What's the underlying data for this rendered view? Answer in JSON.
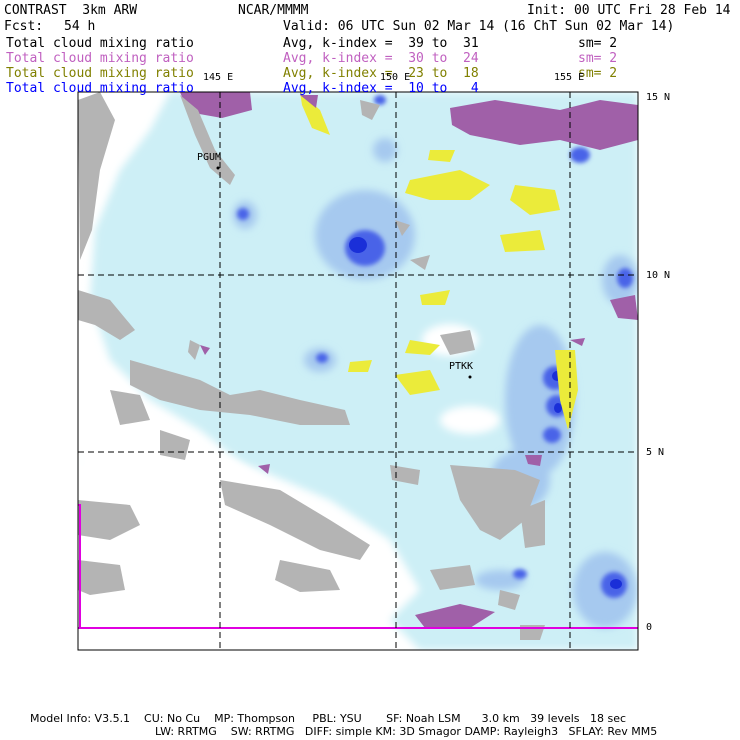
{
  "header": {
    "model": "CONTRAST  3km ARW",
    "org": "NCAR/MMMM",
    "init": "Init: 00 UTC Fri 28 Feb 14",
    "fcst_label": "Fcst:",
    "fcst_value": "54 h",
    "valid": "Valid: 06 UTC Sun 02 Mar 14 (16 ChT Sun 02 Mar 14)"
  },
  "fields": [
    {
      "name": "Total cloud mixing ratio",
      "stats": "Avg, k-index =  39 to  31",
      "sm": "sm= 2",
      "color": "#000000"
    },
    {
      "name": "Total cloud mixing ratio",
      "stats": "Avg, k-index =  30 to  24",
      "sm": "sm= 2",
      "color": "#c060c0"
    },
    {
      "name": "Total cloud mixing ratio",
      "stats": "Avg, k-index =  23 to  18",
      "sm": "sm= 2",
      "color": "#808000"
    },
    {
      "name": "Total cloud mixing ratio",
      "stats": "Avg, k-index =  10 to   4",
      "sm": "",
      "color": "#0000ff"
    }
  ],
  "map": {
    "lon_labels": [
      "145 E",
      "150 E",
      "155 E"
    ],
    "lat_labels": [
      "15 N",
      "10 N",
      "5 N",
      "0"
    ],
    "stations": [
      "PGUM",
      "PTKK"
    ],
    "colors": {
      "land": "#b4b4b4",
      "ocean": "#ffffff",
      "cloud_light": "#cdeff6",
      "cloud_mid": "#a6c9ef",
      "cloud_heavy": "#4a63e8",
      "cloud_core": "#1a2fd8",
      "ice": "#ebeb3a",
      "upper": "#a060a8",
      "equator_line": "#e000e0"
    }
  },
  "footer": {
    "line1": "Model Info: V3.5.1    CU: No Cu    MP: Thompson     PBL: YSU       SF: Noah LSM      3.0 km   39 levels   18 sec",
    "line2": "LW: RRTMG    SW: RRTMG   DIFF: simple KM: 3D Smagor DAMP: Rayleigh3   SFLAY: Rev MM5"
  }
}
